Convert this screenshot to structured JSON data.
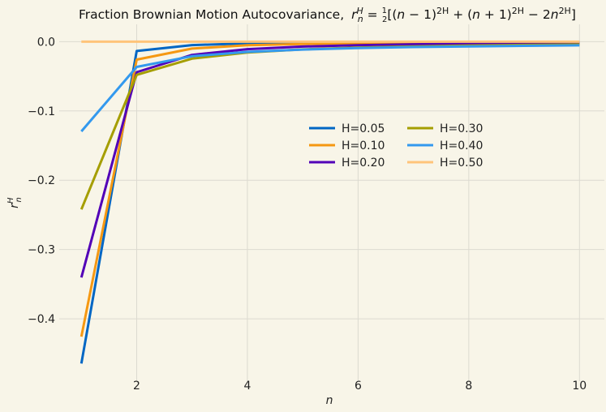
{
  "chart_data": {
    "type": "line",
    "title": "Fraction Brownian Motion Autocovariance, r_n^H = ½[(n − 1)^{2H} + (n + 1)^{2H} − 2n^{2H}]",
    "title_parts": {
      "prefix": "Fraction Brownian Motion Autocovariance,",
      "formula_start": "[(",
      "n1": "n",
      "minus1": " − 1)",
      "plus_open": " + (",
      "n2": "n",
      "plus1": " + 1)",
      "minus2": " − 2",
      "n3": "n",
      "close": "]",
      "exp": "2H",
      "r": "r",
      "r_sub": "n",
      "r_sup": "H",
      "eq": " = ",
      "half_num": "1",
      "half_den": "2"
    },
    "xlabel": "n",
    "ylabel": {
      "base": "r",
      "sub": "n",
      "sup": "H"
    },
    "x": [
      1,
      2,
      3,
      4,
      5,
      6,
      7,
      8,
      9,
      10
    ],
    "xlim": [
      0.6,
      10.45
    ],
    "ylim": [
      -0.49,
      0.025
    ],
    "xticks": [
      2,
      4,
      6,
      8,
      10
    ],
    "xtick_labels": [
      "2",
      "4",
      "6",
      "8",
      "10"
    ],
    "yticks": [
      0.0,
      -0.1,
      -0.2,
      -0.3,
      -0.4
    ],
    "ytick_labels": [
      "0.0",
      "−0.1",
      "−0.2",
      "−0.3",
      "−0.4"
    ],
    "grid": true,
    "legend_position": "center-right",
    "legend_columns": 2,
    "series": [
      {
        "name": "H=0.05",
        "color": "#0066c4",
        "values": [
          -0.4646,
          -0.0135,
          -0.005,
          -0.0025,
          -0.0016,
          -0.0011,
          -0.0008,
          -0.0006,
          -0.0005,
          -0.0004
        ]
      },
      {
        "name": "H=0.10",
        "color": "#f59812",
        "values": [
          -0.4257,
          -0.0259,
          -0.01,
          -0.0052,
          -0.0033,
          -0.0023,
          -0.0017,
          -0.0013,
          -0.001,
          -0.0008
        ]
      },
      {
        "name": "H=0.20",
        "color": "#5200b7",
        "values": [
          -0.3403,
          -0.044,
          -0.0191,
          -0.0108,
          -0.0071,
          -0.0051,
          -0.0038,
          -0.003,
          -0.0024,
          -0.002
        ]
      },
      {
        "name": "H=0.30",
        "color": "#a59e00",
        "values": [
          -0.2421,
          -0.0479,
          -0.0245,
          -0.0157,
          -0.0112,
          -0.0085,
          -0.0068,
          -0.0056,
          -0.0047,
          -0.004
        ]
      },
      {
        "name": "H=0.40",
        "color": "#3399ee",
        "values": [
          -0.1295,
          -0.0365,
          -0.021,
          -0.0148,
          -0.0114,
          -0.0093,
          -0.0078,
          -0.0068,
          -0.006,
          -0.0053
        ]
      },
      {
        "name": "H=0.50",
        "color": "#ffc47a",
        "values": [
          0,
          0,
          0,
          0,
          0,
          0,
          0,
          0,
          0,
          0
        ]
      }
    ]
  }
}
